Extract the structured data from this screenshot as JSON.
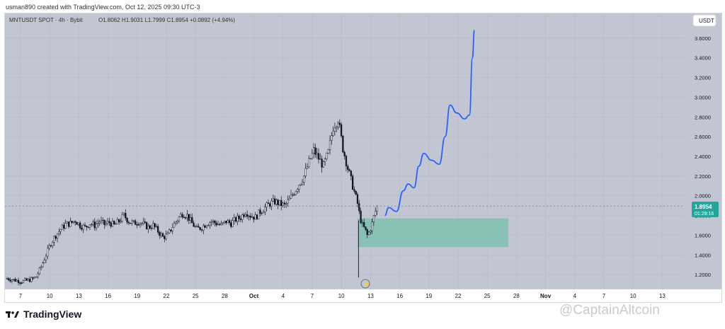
{
  "header_text": "usman890 created with TradingView.com, Oct 12, 2025 09:30 UTC-3",
  "footer": {
    "logo_text": "TradingView",
    "watermark": "@CaptainAltcoin"
  },
  "chart_data": {
    "type": "candlestick",
    "title": "MNTUSDT SPOT · 4h · Bybit",
    "ohlc_line": "O1.8062 H1.9031 L1.7999 C1.8954 +0.0892 (+4.94%)",
    "currency_label": "USDT",
    "ylim": [
      1.05,
      3.85
    ],
    "yticks": [
      "3.6000",
      "3.4000",
      "3.2000",
      "3.0000",
      "2.8000",
      "2.6000",
      "2.4000",
      "2.2000",
      "2.0000",
      "1.8000",
      "1.6000",
      "1.4000",
      "1.2000"
    ],
    "xticks": [
      "7",
      "10",
      "13",
      "16",
      "19",
      "22",
      "25",
      "28",
      "Oct",
      "4",
      "7",
      "10",
      "13",
      "16",
      "19",
      "22",
      "25",
      "28",
      "Nov",
      "4",
      "7",
      "10",
      "13"
    ],
    "last_price": "1.8954",
    "countdown": "01:29:16",
    "close_path_days": [
      [
        0,
        1.16
      ],
      [
        1,
        1.14
      ],
      [
        1.5,
        1.13
      ],
      [
        2,
        1.14
      ],
      [
        2.5,
        1.15
      ],
      [
        3,
        1.18
      ],
      [
        3.5,
        1.28
      ],
      [
        4,
        1.4
      ],
      [
        4.5,
        1.52
      ],
      [
        5,
        1.6
      ],
      [
        5.5,
        1.66
      ],
      [
        6,
        1.71
      ],
      [
        6.5,
        1.72
      ],
      [
        7,
        1.75
      ],
      [
        7.5,
        1.7
      ],
      [
        8,
        1.68
      ],
      [
        8.5,
        1.72
      ],
      [
        9,
        1.7
      ],
      [
        9.5,
        1.74
      ],
      [
        10,
        1.71
      ],
      [
        10.5,
        1.73
      ],
      [
        11,
        1.7
      ],
      [
        11.5,
        1.74
      ],
      [
        12,
        1.8
      ],
      [
        12.5,
        1.74
      ],
      [
        13,
        1.72
      ],
      [
        13.5,
        1.74
      ],
      [
        14,
        1.71
      ],
      [
        14.5,
        1.68
      ],
      [
        15,
        1.7
      ],
      [
        15.5,
        1.64
      ],
      [
        16,
        1.58
      ],
      [
        16.5,
        1.6
      ],
      [
        17,
        1.69
      ],
      [
        17.5,
        1.76
      ],
      [
        18,
        1.82
      ],
      [
        18.5,
        1.8
      ],
      [
        19,
        1.72
      ],
      [
        19.5,
        1.66
      ],
      [
        20,
        1.68
      ],
      [
        20.5,
        1.72
      ],
      [
        21,
        1.74
      ],
      [
        21.5,
        1.72
      ],
      [
        22,
        1.7
      ],
      [
        22.5,
        1.74
      ],
      [
        23,
        1.72
      ],
      [
        23.5,
        1.76
      ],
      [
        24,
        1.78
      ],
      [
        24.5,
        1.84
      ],
      [
        25,
        1.8
      ],
      [
        25.5,
        1.78
      ],
      [
        26,
        1.84
      ],
      [
        26.5,
        1.88
      ],
      [
        27,
        1.92
      ],
      [
        27.5,
        1.94
      ],
      [
        28,
        1.92
      ],
      [
        28.5,
        1.9
      ],
      [
        29,
        1.96
      ],
      [
        29.5,
        2.04
      ],
      [
        30,
        2.12
      ],
      [
        30.5,
        2.2
      ],
      [
        31,
        2.34
      ],
      [
        31.5,
        2.46
      ],
      [
        32,
        2.38
      ],
      [
        32.5,
        2.3
      ],
      [
        33,
        2.44
      ],
      [
        33.5,
        2.7
      ],
      [
        34,
        2.78
      ],
      [
        34.5,
        2.48
      ],
      [
        35,
        2.28
      ],
      [
        35.5,
        2.1
      ],
      [
        36,
        1.92
      ],
      [
        36.25,
        1.78
      ],
      [
        36.5,
        1.7
      ],
      [
        36.75,
        1.66
      ],
      [
        37,
        1.6
      ],
      [
        37.25,
        1.64
      ],
      [
        37.5,
        1.72
      ],
      [
        37.75,
        1.82
      ],
      [
        38,
        1.89
      ]
    ],
    "low_spike": {
      "day": 36.1,
      "low": 1.17
    },
    "projection_path_days": [
      [
        38.8,
        1.8
      ],
      [
        39.2,
        1.88
      ],
      [
        40,
        1.84
      ],
      [
        40.7,
        2.05
      ],
      [
        41.2,
        2.12
      ],
      [
        41.8,
        2.08
      ],
      [
        42.3,
        2.3
      ],
      [
        42.8,
        2.43
      ],
      [
        43.6,
        2.36
      ],
      [
        44.4,
        2.32
      ],
      [
        45.0,
        2.6
      ],
      [
        45.5,
        2.92
      ],
      [
        46.2,
        2.84
      ],
      [
        47.0,
        2.78
      ],
      [
        47.5,
        2.82
      ],
      [
        47.8,
        3.4
      ],
      [
        48.0,
        3.68
      ]
    ],
    "support_zone": {
      "day_start": 36.0,
      "day_end": 51.5,
      "low": 1.48,
      "high": 1.77
    },
    "colors": {
      "background": "#c2c6d2",
      "candle": "#131722",
      "projection": "#2962ff",
      "zone": "#7fbfb0",
      "last_price_bg": "#26a69a"
    }
  }
}
